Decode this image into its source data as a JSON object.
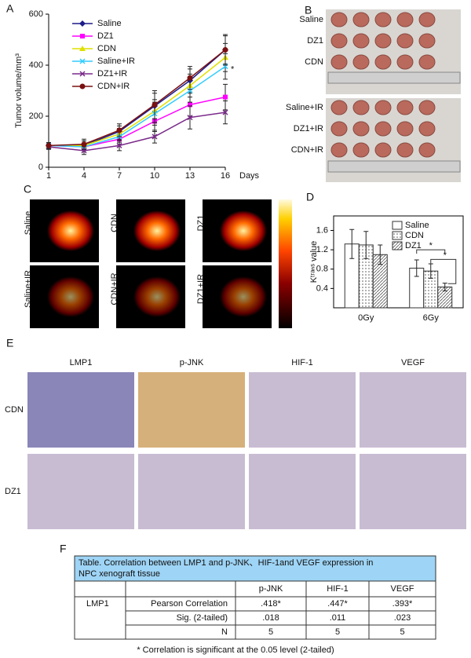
{
  "chart_data": [
    {
      "type": "line",
      "panel": "A",
      "xlabel": "Days",
      "ylabel": "Tumor volume/mm³",
      "x": [
        1,
        4,
        7,
        10,
        13,
        16
      ],
      "xlim": [
        1,
        16
      ],
      "xticks": [
        1,
        4,
        7,
        10,
        13,
        16
      ],
      "ylim": [
        0,
        600
      ],
      "yticks": [
        0,
        200,
        400,
        600
      ],
      "annotation": "*",
      "series": [
        {
          "name": "Saline",
          "color": "#1c1c8a",
          "marker": "diamond",
          "values": [
            85,
            85,
            140,
            240,
            340,
            460
          ],
          "errors": [
            12,
            18,
            22,
            50,
            45,
            55
          ]
        },
        {
          "name": "DZ1",
          "color": "#ff00ff",
          "marker": "square",
          "values": [
            85,
            80,
            110,
            180,
            245,
            275
          ],
          "errors": [
            10,
            15,
            20,
            40,
            45,
            50
          ]
        },
        {
          "name": "CDN",
          "color": "#e0e000",
          "marker": "triangle",
          "values": [
            85,
            85,
            130,
            220,
            320,
            430
          ],
          "errors": [
            12,
            18,
            22,
            45,
            45,
            55
          ]
        },
        {
          "name": "Saline+IR",
          "color": "#33ccff",
          "marker": "x",
          "values": [
            85,
            80,
            120,
            210,
            300,
            395
          ],
          "errors": [
            12,
            15,
            22,
            45,
            45,
            50
          ]
        },
        {
          "name": "DZ1+IR",
          "color": "#7a2a8a",
          "marker": "x",
          "values": [
            80,
            65,
            85,
            120,
            195,
            215
          ],
          "errors": [
            10,
            15,
            20,
            25,
            45,
            45
          ]
        },
        {
          "name": "CDN+IR",
          "color": "#7a1010",
          "marker": "circle",
          "values": [
            85,
            90,
            145,
            245,
            350,
            460
          ],
          "errors": [
            12,
            20,
            25,
            55,
            45,
            60
          ]
        }
      ]
    },
    {
      "type": "bar",
      "panel": "D",
      "ylabel": "Kᵗʳᵃⁿˢ value",
      "categories": [
        "0Gy",
        "6Gy"
      ],
      "ylim": [
        0,
        1.9
      ],
      "yticks": [
        0.4,
        0.8,
        1.2,
        1.6
      ],
      "annotations": [
        "*",
        "*"
      ],
      "series": [
        {
          "name": "Saline",
          "pattern": "none",
          "values": [
            1.32,
            0.82
          ],
          "errors": [
            0.3,
            0.17
          ]
        },
        {
          "name": "CDN",
          "pattern": "dots",
          "values": [
            1.3,
            0.76
          ],
          "errors": [
            0.28,
            0.15
          ]
        },
        {
          "name": "DZ1",
          "pattern": "hatch",
          "values": [
            1.1,
            0.43
          ],
          "errors": [
            0.2,
            0.08
          ]
        }
      ]
    }
  ],
  "panel_b": {
    "letter": "B",
    "labels": [
      "Saline",
      "DZ1",
      "CDN",
      "Saline+IR",
      "DZ1+IR",
      "CDN+IR"
    ]
  },
  "panel_c": {
    "letter": "C",
    "labels": [
      "Saline",
      "CDN",
      "DZ1",
      "Saline+IR",
      "CDN+IR",
      "DZ1+IR"
    ]
  },
  "panel_e": {
    "letter": "E",
    "columns": [
      "LMP1",
      "p-JNK",
      "HIF-1",
      "VEGF"
    ],
    "rows": [
      "CDN",
      "DZ1"
    ]
  },
  "panel_f": {
    "letter": "F",
    "title": "Table. Correlation between LMP1 and p-JNK、HIF-1and VEGF expression in NPC xenograft tissue",
    "columns": [
      "p-JNK",
      "HIF-1",
      "VEGF"
    ],
    "row_group": "LMP1",
    "rows": [
      [
        "Pearson Correlation",
        ".418*",
        ".447*",
        ".393*"
      ],
      [
        "Sig. (2-tailed)",
        ".018",
        ".011",
        ".023"
      ],
      [
        "N",
        "5",
        "5",
        "5"
      ]
    ],
    "footnote": "* Correlation is significant at the 0.05 level (2-tailed)"
  }
}
